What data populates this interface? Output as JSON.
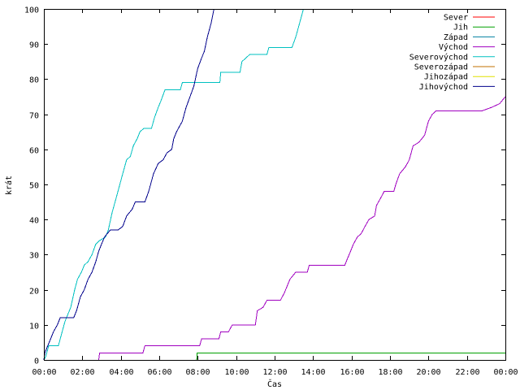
{
  "chart_data": {
    "type": "line",
    "title": "",
    "xlabel": "Čas",
    "ylabel": "krát",
    "x_unit": "hours",
    "xlim": [
      0,
      24
    ],
    "ylim": [
      0,
      100
    ],
    "grid": false,
    "legend_position": "top-right",
    "x_tick_values": [
      0,
      2,
      4,
      6,
      8,
      10,
      12,
      14,
      16,
      18,
      20,
      22,
      24
    ],
    "x_tick_labels": [
      "00:00",
      "02:00",
      "04:00",
      "06:00",
      "08:00",
      "10:00",
      "12:00",
      "14:00",
      "16:00",
      "18:00",
      "20:00",
      "22:00",
      "00:00"
    ],
    "y_tick_values": [
      0,
      10,
      20,
      30,
      40,
      50,
      60,
      70,
      80,
      90,
      100
    ],
    "y_tick_labels": [
      "0",
      "10",
      "20",
      "30",
      "40",
      "50",
      "60",
      "70",
      "80",
      "90",
      "100"
    ],
    "series": [
      {
        "name": "Sever",
        "color": "#ff0000",
        "points": []
      },
      {
        "name": "Jih",
        "color": "#00a000",
        "points": [
          [
            7.95,
            0
          ],
          [
            7.97,
            2
          ],
          [
            24,
            2
          ]
        ]
      },
      {
        "name": "Západ",
        "color": "#0080a0",
        "points": []
      },
      {
        "name": "Východ",
        "color": "#a000c0",
        "points": [
          [
            2.85,
            0
          ],
          [
            2.9,
            2
          ],
          [
            5.15,
            2
          ],
          [
            5.25,
            4
          ],
          [
            8.1,
            4
          ],
          [
            8.2,
            6
          ],
          [
            9.1,
            6
          ],
          [
            9.2,
            8
          ],
          [
            9.6,
            8
          ],
          [
            9.8,
            10
          ],
          [
            11.0,
            10
          ],
          [
            11.1,
            14
          ],
          [
            11.4,
            15
          ],
          [
            11.6,
            17
          ],
          [
            12.3,
            17
          ],
          [
            12.5,
            19
          ],
          [
            12.8,
            23
          ],
          [
            13.1,
            25
          ],
          [
            13.7,
            25
          ],
          [
            13.8,
            27
          ],
          [
            15.65,
            27
          ],
          [
            15.8,
            29
          ],
          [
            15.95,
            31
          ],
          [
            16.1,
            33
          ],
          [
            16.3,
            35
          ],
          [
            16.5,
            36
          ],
          [
            16.7,
            38
          ],
          [
            16.9,
            40
          ],
          [
            17.2,
            41
          ],
          [
            17.3,
            44
          ],
          [
            17.5,
            46
          ],
          [
            17.7,
            48
          ],
          [
            18.2,
            48
          ],
          [
            18.3,
            50
          ],
          [
            18.5,
            53
          ],
          [
            18.8,
            55
          ],
          [
            19.0,
            57
          ],
          [
            19.2,
            61
          ],
          [
            19.5,
            62
          ],
          [
            19.8,
            64
          ],
          [
            20.0,
            68
          ],
          [
            20.2,
            70
          ],
          [
            20.4,
            71
          ],
          [
            22.8,
            71
          ],
          [
            23.3,
            72
          ],
          [
            23.7,
            73
          ],
          [
            24,
            75
          ]
        ]
      },
      {
        "name": "Severovýchod",
        "color": "#00c0c0",
        "points": [
          [
            0,
            0
          ],
          [
            0.1,
            1
          ],
          [
            0.25,
            4
          ],
          [
            0.75,
            4
          ],
          [
            0.9,
            7
          ],
          [
            1.1,
            11
          ],
          [
            1.4,
            15
          ],
          [
            1.6,
            20
          ],
          [
            1.75,
            23
          ],
          [
            1.95,
            25
          ],
          [
            2.1,
            27
          ],
          [
            2.3,
            28
          ],
          [
            2.5,
            30
          ],
          [
            2.7,
            33
          ],
          [
            2.9,
            34
          ],
          [
            3.2,
            35
          ],
          [
            3.35,
            37
          ],
          [
            3.55,
            42
          ],
          [
            3.75,
            46
          ],
          [
            3.95,
            50
          ],
          [
            4.1,
            53
          ],
          [
            4.3,
            57
          ],
          [
            4.5,
            58
          ],
          [
            4.65,
            61
          ],
          [
            4.85,
            63
          ],
          [
            5.0,
            65
          ],
          [
            5.2,
            66
          ],
          [
            5.6,
            66
          ],
          [
            5.75,
            69
          ],
          [
            5.95,
            72
          ],
          [
            6.1,
            74
          ],
          [
            6.3,
            77
          ],
          [
            6.6,
            77
          ],
          [
            7.1,
            77
          ],
          [
            7.2,
            79
          ],
          [
            8.8,
            79
          ],
          [
            9.15,
            79
          ],
          [
            9.2,
            82
          ],
          [
            10.2,
            82
          ],
          [
            10.3,
            85
          ],
          [
            10.5,
            86
          ],
          [
            10.7,
            87
          ],
          [
            11.6,
            87
          ],
          [
            11.7,
            89
          ],
          [
            12.9,
            89
          ],
          [
            13.1,
            92
          ],
          [
            13.3,
            96
          ],
          [
            13.5,
            100
          ]
        ]
      },
      {
        "name": "Severozápad",
        "color": "#c07000",
        "points": []
      },
      {
        "name": "Jihozápad",
        "color": "#e0e000",
        "points": []
      },
      {
        "name": "Jihovýchod",
        "color": "#00008b",
        "points": [
          [
            0,
            0
          ],
          [
            0.05,
            2
          ],
          [
            0.2,
            4
          ],
          [
            0.35,
            6
          ],
          [
            0.5,
            8
          ],
          [
            0.7,
            10
          ],
          [
            0.85,
            12
          ],
          [
            1.55,
            12
          ],
          [
            1.7,
            14
          ],
          [
            1.9,
            18
          ],
          [
            2.1,
            20
          ],
          [
            2.3,
            23
          ],
          [
            2.5,
            25
          ],
          [
            2.7,
            28
          ],
          [
            2.85,
            31
          ],
          [
            3.0,
            33
          ],
          [
            3.15,
            35
          ],
          [
            3.3,
            36
          ],
          [
            3.45,
            37
          ],
          [
            3.85,
            37
          ],
          [
            4.1,
            38
          ],
          [
            4.3,
            41
          ],
          [
            4.6,
            43
          ],
          [
            4.75,
            45
          ],
          [
            5.25,
            45
          ],
          [
            5.45,
            48
          ],
          [
            5.7,
            53
          ],
          [
            5.95,
            56
          ],
          [
            6.2,
            57
          ],
          [
            6.4,
            59
          ],
          [
            6.65,
            60
          ],
          [
            6.75,
            63
          ],
          [
            6.9,
            65
          ],
          [
            7.2,
            68
          ],
          [
            7.4,
            72
          ],
          [
            7.6,
            75
          ],
          [
            7.8,
            78
          ],
          [
            8.0,
            83
          ],
          [
            8.2,
            86
          ],
          [
            8.35,
            88
          ],
          [
            8.5,
            92
          ],
          [
            8.7,
            96
          ],
          [
            8.85,
            100
          ]
        ]
      }
    ]
  }
}
